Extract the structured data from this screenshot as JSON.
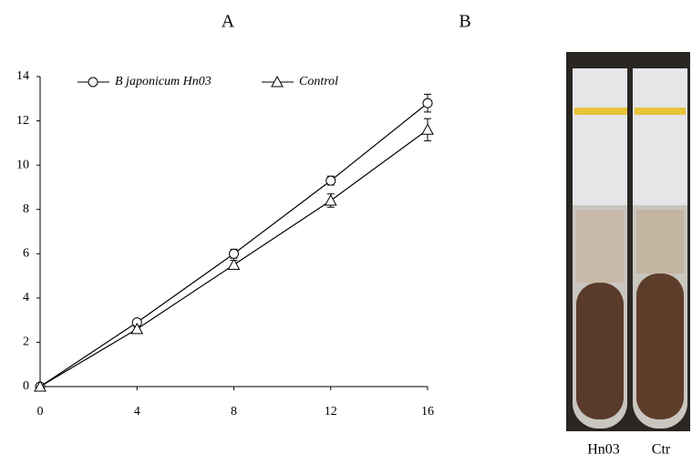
{
  "chart_data": {
    "type": "line",
    "panel_label": "A",
    "x": [
      0,
      4,
      8,
      12,
      16
    ],
    "series": [
      {
        "name": "B japonicum Hn03",
        "marker": "circle",
        "color": "#000000",
        "values": [
          0,
          2.9,
          6.0,
          9.3,
          12.8
        ],
        "errors": [
          0,
          0.1,
          0.2,
          0.2,
          0.4
        ]
      },
      {
        "name": "Control",
        "marker": "triangle",
        "color": "#000000",
        "values": [
          0,
          2.6,
          5.5,
          8.4,
          11.6
        ],
        "errors": [
          0,
          0.1,
          0.2,
          0.3,
          0.5
        ]
      }
    ],
    "xlim": [
      0,
      16
    ],
    "xticks": [
      0,
      4,
      8,
      12,
      16
    ],
    "ylim": [
      0,
      14
    ],
    "yticks": [
      0,
      2,
      4,
      6,
      8,
      10,
      12,
      14
    ],
    "grid": false,
    "legend": "top"
  },
  "panel_b": {
    "label": "B",
    "captions": [
      "Hn03",
      "Ctr"
    ]
  }
}
